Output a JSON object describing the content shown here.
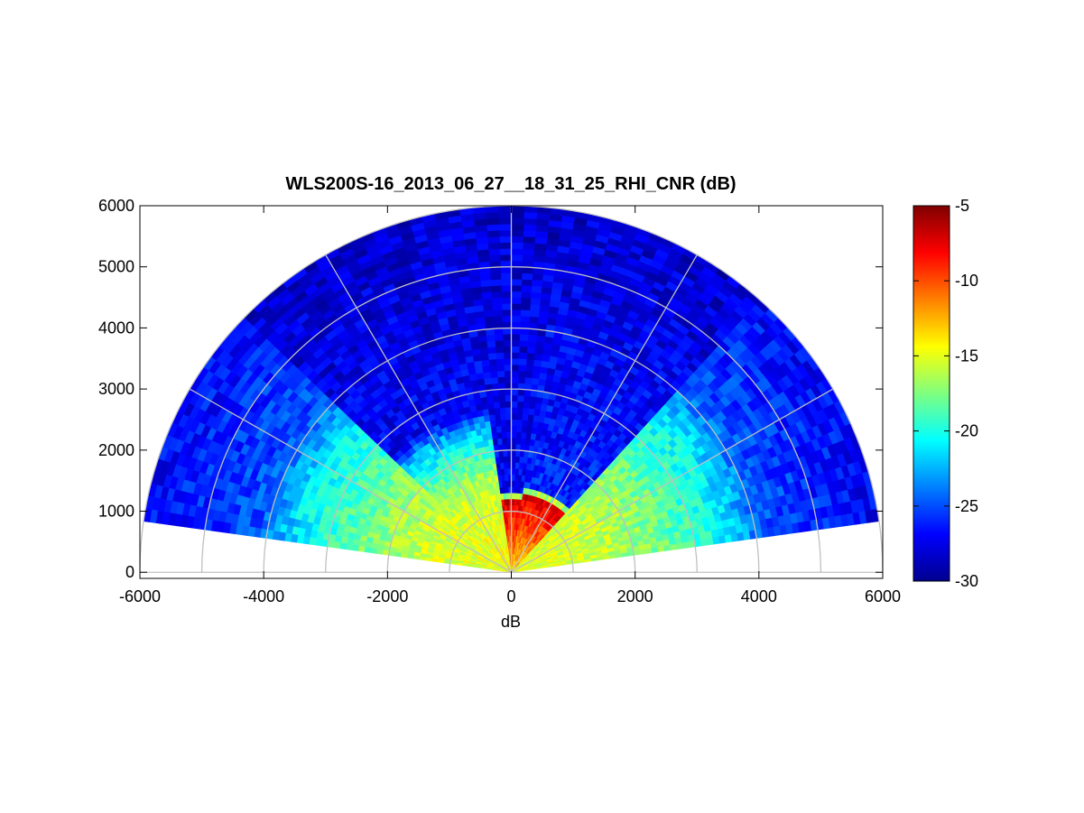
{
  "chart_data": {
    "type": "heatmap",
    "subtype": "polar RHI scan (range-height indicator)",
    "title": "WLS200S-16_2013_06_27__18_31_25_RHI_CNR (dB)",
    "xlabel": "dB",
    "ylabel": "",
    "xlim": [
      -6000,
      6000
    ],
    "ylim": [
      -100,
      6000
    ],
    "xticks": [
      "-6000",
      "-4000",
      "-2000",
      "0",
      "2000",
      "4000",
      "6000"
    ],
    "yticks": [
      "0",
      "1000",
      "2000",
      "3000",
      "4000",
      "5000",
      "6000"
    ],
    "x_tick_values": [
      -6000,
      -4000,
      -2000,
      0,
      2000,
      4000,
      6000
    ],
    "y_tick_values": [
      0,
      1000,
      2000,
      3000,
      4000,
      5000,
      6000
    ],
    "colormap": "jet",
    "colorbar": {
      "min": -30,
      "max": -5,
      "ticks": [
        "-5",
        "-10",
        "-15",
        "-20",
        "-25",
        "-30"
      ],
      "tick_values": [
        -5,
        -10,
        -15,
        -20,
        -25,
        -30
      ],
      "placement": "right"
    },
    "polar_grid": {
      "range_rings": [
        1000,
        2000,
        3000,
        4000,
        5000,
        6000
      ],
      "spokes_deg": [
        0,
        30,
        60,
        90,
        120,
        150,
        180
      ]
    },
    "scan_range_max": 6000,
    "scan_elevation_deg": [
      8,
      172
    ],
    "cnr_profile": [
      {
        "elevation_range_deg": [
          8,
          48
        ],
        "cnr_db": [
          [
            0,
            -15
          ],
          [
            1000,
            -15.5
          ],
          [
            1600,
            -16
          ],
          [
            2500,
            -18
          ],
          [
            3500,
            -21
          ],
          [
            4200,
            -25
          ],
          [
            6000,
            -27
          ]
        ]
      },
      {
        "elevation_range_deg": [
          48,
          82
        ],
        "cnr_db": [
          [
            0,
            -14
          ],
          [
            1300,
            -7
          ],
          [
            1400,
            -26
          ],
          [
            6000,
            -28
          ]
        ]
      },
      {
        "elevation_range_deg": [
          82,
          98
        ],
        "cnr_db": [
          [
            0,
            -13
          ],
          [
            1200,
            -7
          ],
          [
            1300,
            -27
          ],
          [
            6000,
            -28
          ]
        ]
      },
      {
        "elevation_range_deg": [
          98,
          135
        ],
        "cnr_db": [
          [
            0,
            -14
          ],
          [
            1500,
            -16
          ],
          [
            2400,
            -22
          ],
          [
            2700,
            -27
          ],
          [
            6000,
            -28
          ]
        ]
      },
      {
        "elevation_range_deg": [
          135,
          172
        ],
        "cnr_db": [
          [
            0,
            -15
          ],
          [
            1500,
            -15.5
          ],
          [
            2500,
            -18
          ],
          [
            3500,
            -21
          ],
          [
            4200,
            -25
          ],
          [
            6000,
            -27
          ]
        ]
      }
    ],
    "colors": {
      "grid": "#c0c0c0",
      "axes": "#000000",
      "background": "#ffffff"
    }
  }
}
